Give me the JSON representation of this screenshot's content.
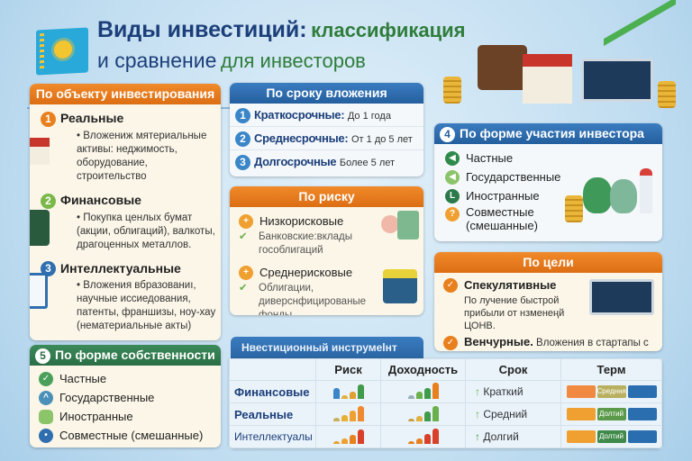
{
  "header": {
    "title_part1": "Виды инвестиций:",
    "title_part2": "классификация",
    "title_part3": "и сравнение",
    "title_part4": "для инвесторов",
    "flag_icon": "kazakhstan-flag-icon"
  },
  "colors": {
    "orange": "#e8801e",
    "blue": "#2f6fb0",
    "green": "#2e7d4f",
    "navy": "#1c3f7a"
  },
  "by_object": {
    "title": "По объекту инвестирования",
    "items": [
      {
        "num": "1",
        "title": "Реальные",
        "desc": "• Вложениж мятериальные активы: неджимость, оборудование, строительство"
      },
      {
        "num": "2",
        "title": "Финансовые",
        "desc": "• Покупка ценлых бумат (акции, облигаций), валкоты, драгоценных металлов."
      },
      {
        "num": "3",
        "title": "Интеллектуальные",
        "desc": "• Вложения вбразованиı, научные иссиедования, патенты, франшизы, ноу-хау (нематериальные акты)"
      }
    ]
  },
  "by_term": {
    "title": "По сроку вложения",
    "items": [
      {
        "num": "1",
        "title": "Краткосрочные:",
        "value": "До 1 года"
      },
      {
        "num": "2",
        "title": "Среднесрочные:",
        "value": "От 1 до 5 лет"
      },
      {
        "num": "3",
        "title": "Долгосрочные",
        "value": "Более 5 лет"
      }
    ]
  },
  "by_risk": {
    "title": "По риску",
    "items": [
      {
        "title": "Низкорисковые",
        "desc": "Банковские:вклады гособлигаций"
      },
      {
        "title": "Среднерисковые",
        "desc": "Облигации, диверснфицированые фонды"
      }
    ]
  },
  "by_participation": {
    "num": "4",
    "title": "По форме участия инвестора",
    "items": [
      "Частные",
      "Государственные",
      "Иностранные",
      "Совместные (смешанные)"
    ]
  },
  "by_goal": {
    "title": "По цели",
    "items": [
      {
        "title": "Спекулятивные",
        "desc": "По лучение быстрой прибыли от нзменеңй ЦОНВ."
      },
      {
        "title": "Венчурные.",
        "desc": "Вложения в стартапы с высоким потенциалом."
      }
    ]
  },
  "by_ownership": {
    "num": "5",
    "title": "По форме собственности",
    "items": [
      "Частные",
      "Государственные",
      "Иностранные",
      "Совместные (смешанные)"
    ]
  },
  "table": {
    "tab_label": "Нвестиционный инструмеlнт",
    "headers": [
      "",
      "Риск",
      "Доходность",
      "Срок",
      "Терм"
    ],
    "rows": [
      {
        "name": "Финансовые",
        "term": "Краткий",
        "term_label": "Средння"
      },
      {
        "name": "Реальные",
        "term": "Средний",
        "term_label": "Долтий"
      },
      {
        "name": "Интеллектуалы",
        "term": "Долгий",
        "term_label": "Долтий"
      }
    ]
  }
}
